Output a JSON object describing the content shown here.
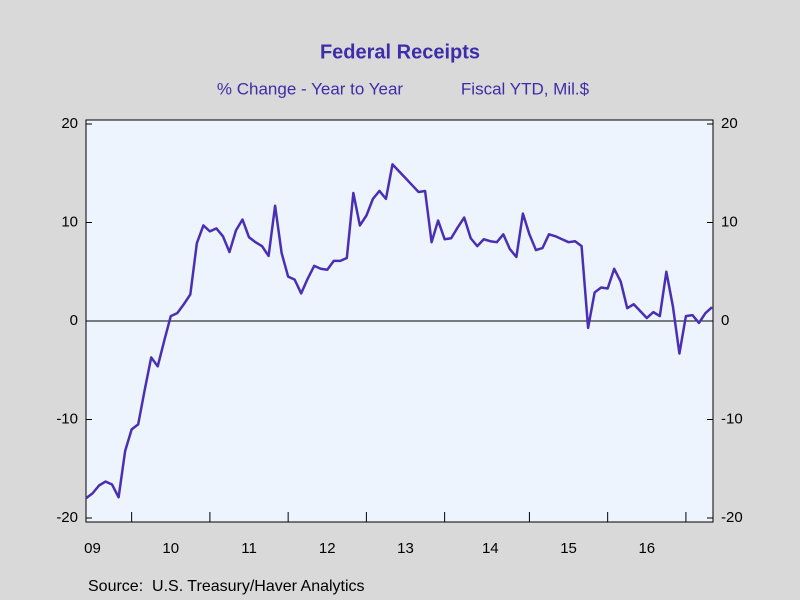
{
  "chart_data": {
    "type": "line",
    "title": "Federal Receipts",
    "subtitle": "% Change - Year to Year",
    "units": "Fiscal YTD, Mil.$",
    "source": "Source:  U.S. Treasury/Haver Analytics",
    "categories": [
      null,
      "09",
      null,
      null,
      null,
      null,
      null,
      null,
      null,
      null,
      null,
      null,
      null,
      "10",
      null,
      null,
      null,
      null,
      null,
      null,
      null,
      null,
      null,
      null,
      null,
      "11",
      null,
      null,
      null,
      null,
      null,
      null,
      null,
      null,
      null,
      null,
      null,
      "12",
      null,
      null,
      null,
      null,
      null,
      null,
      null,
      null,
      null,
      null,
      null,
      "13",
      null,
      null,
      null,
      null,
      null,
      null,
      null,
      null,
      null,
      null,
      null,
      null,
      "14",
      null,
      null,
      null,
      null,
      null,
      null,
      null,
      null,
      null,
      null,
      null,
      "15",
      null,
      null,
      null,
      null,
      null,
      null,
      null,
      null,
      null,
      null,
      null,
      "16",
      null,
      null,
      null,
      null,
      null,
      null,
      null,
      null,
      null,
      null
    ],
    "series": [
      {
        "name": "Federal Receipts",
        "color": "#4a2fb4",
        "values": [
          -18,
          -17.5,
          -16.7,
          -16.3,
          -16.6,
          -17.9,
          -13.2,
          -11,
          -10.5,
          -7,
          -3.7,
          -4.6,
          -2,
          0.5,
          0.8,
          1.7,
          2.7,
          7.9,
          9.7,
          9.1,
          9.4,
          8.6,
          7.0,
          9.2,
          10.3,
          8.5,
          8.0,
          7.6,
          6.6,
          11.7,
          6.9,
          4.5,
          4.2,
          2.8,
          4.3,
          5.6,
          5.3,
          5.2,
          6.1,
          6.1,
          6.4,
          13.0,
          9.7,
          10.7,
          12.4,
          13.2,
          12.4,
          15.9,
          15.2,
          14.5,
          13.8,
          13.1,
          13.2,
          8.0,
          10.2,
          8.3,
          8.4,
          9.5,
          10.5,
          8.4,
          7.6,
          8.3,
          8.1,
          8.0,
          8.8,
          7.3,
          6.5,
          10.9,
          8.8,
          7.2,
          7.4,
          8.8,
          8.6,
          8.3,
          8.0,
          8.1,
          7.6,
          -0.7,
          2.9,
          3.4,
          3.3,
          5.3,
          4.0,
          1.3,
          1.7,
          1.0,
          0.3,
          0.9,
          0.5,
          5.0,
          1.5,
          -3.3,
          0.5,
          0.6,
          -0.2,
          0.8,
          1.4
        ]
      }
    ],
    "ylim": [
      -20,
      20
    ],
    "yticks": [
      -20,
      -10,
      0,
      10,
      20
    ],
    "y2lim": [
      -20,
      20
    ],
    "y2ticks": [
      -20,
      -10,
      0,
      10,
      20
    ]
  }
}
